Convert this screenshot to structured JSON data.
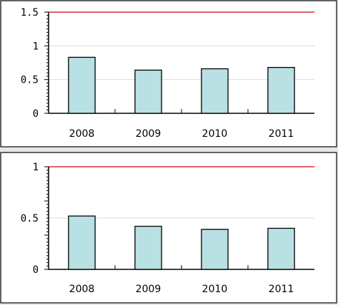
{
  "colors": {
    "bar": "#b9e0e2",
    "reference": "#d40000"
  },
  "chart_data": [
    {
      "type": "bar",
      "title": "",
      "xlabel": "",
      "ylabel": "",
      "categories": [
        "2008",
        "2009",
        "2010",
        "2011"
      ],
      "values": [
        0.83,
        0.64,
        0.66,
        0.68
      ],
      "ylim": [
        0,
        1.5
      ],
      "yticks": [
        0,
        0.5,
        1,
        1.5
      ],
      "ytick_labels": [
        "0",
        "0.5",
        "1",
        "1.5"
      ],
      "reference_line": 1.5,
      "grid": true
    },
    {
      "type": "bar",
      "title": "",
      "xlabel": "",
      "ylabel": "",
      "categories": [
        "2008",
        "2009",
        "2010",
        "2011"
      ],
      "values": [
        0.52,
        0.42,
        0.39,
        0.4
      ],
      "ylim": [
        0,
        1
      ],
      "yticks": [
        0,
        0.5,
        1
      ],
      "ytick_labels": [
        "0",
        "0.5",
        "1"
      ],
      "reference_line": 1,
      "grid": true
    }
  ]
}
